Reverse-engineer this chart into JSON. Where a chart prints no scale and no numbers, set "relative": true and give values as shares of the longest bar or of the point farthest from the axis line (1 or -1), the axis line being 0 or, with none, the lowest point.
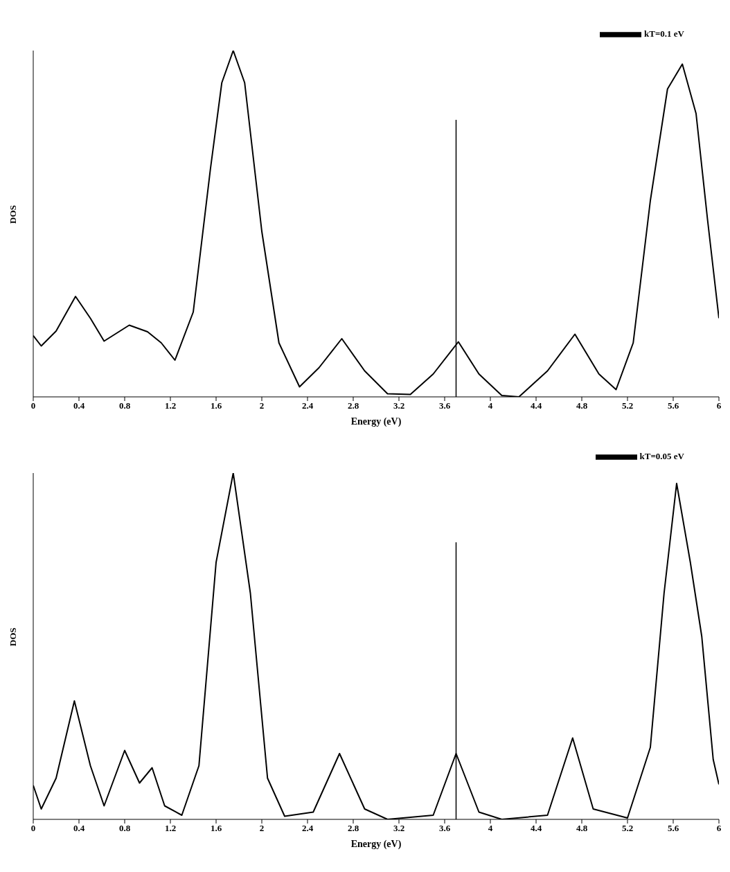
{
  "chart_data": [
    {
      "type": "line",
      "xlabel": "Energy (eV)",
      "ylabel": "DOS",
      "relative": true,
      "xlim": [
        0,
        6
      ],
      "xticks": [
        0,
        0.4,
        0.8,
        1.2,
        1.6,
        2,
        2.4,
        2.8,
        3.2,
        3.6,
        4,
        4.4,
        4.8,
        5.2,
        5.6,
        6
      ],
      "grid": false,
      "legend": "top right",
      "marker": "none",
      "line_style": "solid",
      "ref_lines": [
        {
          "axis": "x",
          "value": 3.7,
          "color": "#000000"
        }
      ],
      "x": [
        0,
        0.07,
        0.2,
        0.37,
        0.5,
        0.62,
        0.84,
        1.0,
        1.12,
        1.24,
        1.4,
        1.55,
        1.65,
        1.75,
        1.85,
        2.0,
        2.15,
        2.33,
        2.5,
        2.7,
        2.9,
        3.1,
        3.3,
        3.5,
        3.72,
        3.9,
        4.1,
        4.25,
        4.5,
        4.74,
        4.95,
        5.1,
        5.25,
        5.4,
        5.55,
        5.68,
        5.8,
        5.9,
        6.0
      ],
      "series": [
        {
          "name": "kT=0.1 eV",
          "color": "#000000",
          "values": [
            0.177,
            0.147,
            0.19,
            0.29,
            0.227,
            0.161,
            0.207,
            0.188,
            0.156,
            0.106,
            0.245,
            0.657,
            0.907,
            1.0,
            0.907,
            0.478,
            0.156,
            0.029,
            0.084,
            0.168,
            0.075,
            0.009,
            0.007,
            0.066,
            0.159,
            0.066,
            0.004,
            0.0,
            0.075,
            0.181,
            0.066,
            0.021,
            0.156,
            0.567,
            0.889,
            0.961,
            0.818,
            0.513,
            0.227
          ]
        }
      ]
    },
    {
      "type": "line",
      "xlabel": "Energy (eV)",
      "ylabel": "DOS",
      "relative": true,
      "xlim": [
        0,
        6
      ],
      "xticks": [
        0,
        0.4,
        0.8,
        1.2,
        1.6,
        2,
        2.4,
        2.8,
        3.2,
        3.6,
        4,
        4.4,
        4.8,
        5.2,
        5.6,
        6
      ],
      "grid": false,
      "legend": "top right",
      "marker": "none",
      "line_style": "solid",
      "ref_lines": [
        {
          "axis": "x",
          "value": 3.7,
          "color": "#000000"
        }
      ],
      "x": [
        0,
        0.07,
        0.2,
        0.36,
        0.5,
        0.62,
        0.8,
        0.93,
        1.04,
        1.15,
        1.3,
        1.45,
        1.6,
        1.75,
        1.9,
        2.05,
        2.2,
        2.45,
        2.68,
        2.9,
        3.1,
        3.5,
        3.7,
        3.9,
        4.1,
        4.5,
        4.72,
        4.9,
        5.2,
        5.4,
        5.52,
        5.63,
        5.75,
        5.85,
        5.95,
        6.0
      ],
      "series": [
        {
          "name": "kT=0.05 eV",
          "color": "#000000",
          "values": [
            0.098,
            0.03,
            0.119,
            0.342,
            0.155,
            0.039,
            0.199,
            0.105,
            0.149,
            0.039,
            0.012,
            0.155,
            0.742,
            1.0,
            0.653,
            0.119,
            0.009,
            0.021,
            0.19,
            0.03,
            0,
            0.012,
            0.19,
            0.021,
            0,
            0.012,
            0.235,
            0.03,
            0.004,
            0.208,
            0.653,
            0.97,
            0.742,
            0.528,
            0.173,
            0.101
          ]
        }
      ]
    }
  ]
}
